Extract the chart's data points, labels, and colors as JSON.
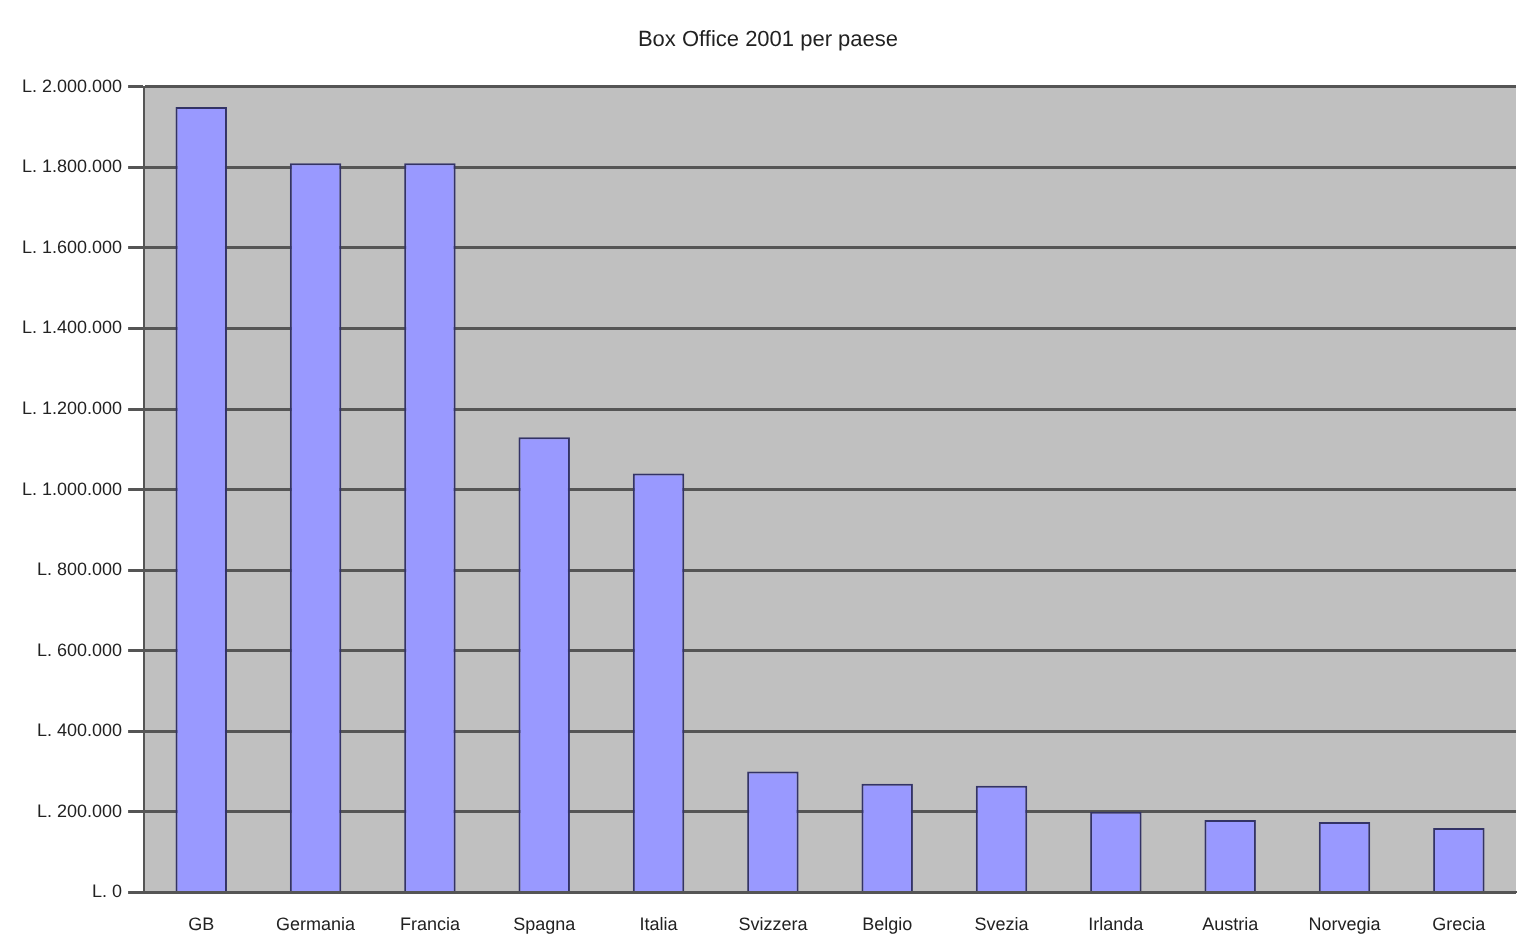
{
  "chart_data": {
    "type": "bar",
    "title": "Box Office 2001 per paese",
    "categories": [
      "GB",
      "Germania",
      "Francia",
      "Spagna",
      "Italia",
      "Svizzera",
      "Belgio",
      "Svezia",
      "Irlanda",
      "Austria",
      "Norvegia",
      "Grecia"
    ],
    "values": [
      1950000,
      1810000,
      1810000,
      1130000,
      1040000,
      300000,
      270000,
      265000,
      200000,
      180000,
      175000,
      160000
    ],
    "color": "#9999ff",
    "ylim": [
      0,
      2000000
    ],
    "yticks": [
      {
        "value": 0,
        "label": "L. 0"
      },
      {
        "value": 200000,
        "label": "L. 200.000"
      },
      {
        "value": 400000,
        "label": "L. 400.000"
      },
      {
        "value": 600000,
        "label": "L. 600.000"
      },
      {
        "value": 800000,
        "label": "L. 800.000"
      },
      {
        "value": 1000000,
        "label": "L. 1.000.000"
      },
      {
        "value": 1200000,
        "label": "L. 1.200.000"
      },
      {
        "value": 1400000,
        "label": "L. 1.400.000"
      },
      {
        "value": 1600000,
        "label": "L. 1.600.000"
      },
      {
        "value": 1800000,
        "label": "L. 1.800.000"
      },
      {
        "value": 2000000,
        "label": "L. 2.000.000"
      }
    ],
    "grid": "y",
    "legend": false
  }
}
